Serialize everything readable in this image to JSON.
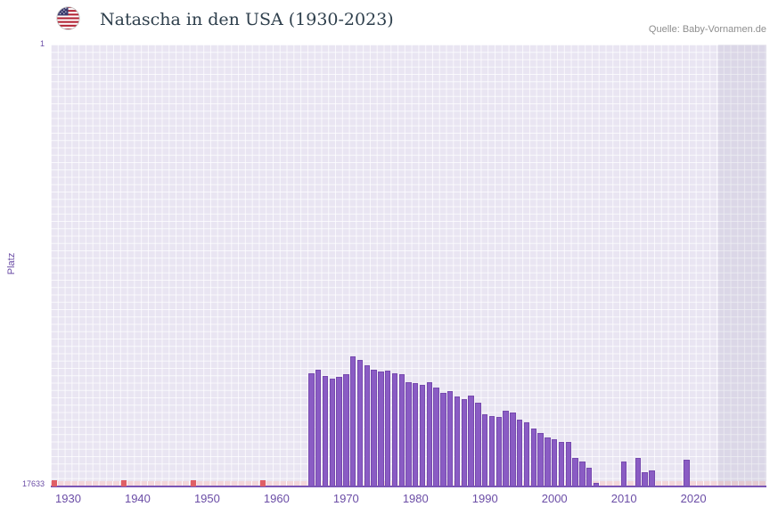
{
  "header": {
    "title": "Natascha in den USA (1930-2023)",
    "source": "Quelle: Baby-Vornamen.de",
    "flag": "us-flag"
  },
  "chart_data": {
    "type": "bar",
    "title": "Natascha in den USA (1930-2023)",
    "xlabel": "",
    "ylabel": "Platz",
    "y_axis": {
      "top_tick": "1",
      "bottom_tick": "17633",
      "min": 1,
      "max": 17633,
      "inverted": true
    },
    "x_axis": {
      "ticks": [
        "1930",
        "1940",
        "1950",
        "1960",
        "1970",
        "1980",
        "1990",
        "2000",
        "2010",
        "2020"
      ],
      "range": [
        1927.5,
        2030.5
      ]
    },
    "bars": [
      {
        "year": 1965,
        "rank": 13137
      },
      {
        "year": 1966,
        "rank": 13013
      },
      {
        "year": 1967,
        "rank": 13260
      },
      {
        "year": 1968,
        "rank": 13366
      },
      {
        "year": 1969,
        "rank": 13295
      },
      {
        "year": 1970,
        "rank": 13190
      },
      {
        "year": 1971,
        "rank": 12484
      },
      {
        "year": 1972,
        "rank": 12608
      },
      {
        "year": 1973,
        "rank": 12837
      },
      {
        "year": 1974,
        "rank": 13013
      },
      {
        "year": 1975,
        "rank": 13084
      },
      {
        "year": 1976,
        "rank": 13049
      },
      {
        "year": 1977,
        "rank": 13137
      },
      {
        "year": 1978,
        "rank": 13190
      },
      {
        "year": 1979,
        "rank": 13490
      },
      {
        "year": 1980,
        "rank": 13542
      },
      {
        "year": 1981,
        "rank": 13613
      },
      {
        "year": 1982,
        "rank": 13490
      },
      {
        "year": 1983,
        "rank": 13719
      },
      {
        "year": 1984,
        "rank": 13930
      },
      {
        "year": 1985,
        "rank": 13842
      },
      {
        "year": 1986,
        "rank": 14071
      },
      {
        "year": 1987,
        "rank": 14177
      },
      {
        "year": 1988,
        "rank": 14018
      },
      {
        "year": 1989,
        "rank": 14318
      },
      {
        "year": 1990,
        "rank": 14777
      },
      {
        "year": 1991,
        "rank": 14847
      },
      {
        "year": 1992,
        "rank": 14900
      },
      {
        "year": 1993,
        "rank": 14636
      },
      {
        "year": 1994,
        "rank": 14724
      },
      {
        "year": 1995,
        "rank": 14988
      },
      {
        "year": 1996,
        "rank": 15112
      },
      {
        "year": 1997,
        "rank": 15341
      },
      {
        "year": 1998,
        "rank": 15517
      },
      {
        "year": 1999,
        "rank": 15693
      },
      {
        "year": 2000,
        "rank": 15782
      },
      {
        "year": 2001,
        "rank": 15870
      },
      {
        "year": 2002,
        "rank": 15870
      },
      {
        "year": 2003,
        "rank": 16540
      },
      {
        "year": 2004,
        "rank": 16663
      },
      {
        "year": 2005,
        "rank": 16928
      },
      {
        "year": 2006,
        "rank": 17527
      },
      {
        "year": 2010,
        "rank": 16663
      },
      {
        "year": 2012,
        "rank": 16540
      },
      {
        "year": 2013,
        "rank": 17104
      },
      {
        "year": 2014,
        "rank": 17016
      },
      {
        "year": 2019,
        "rank": 16610
      }
    ],
    "no_data_mark_years": [
      1928,
      1938,
      1948,
      1958
    ],
    "future_band_start_year": 2023.6,
    "colors": {
      "bar": "#8a5cc4",
      "bar_border": "#7649ae",
      "axis_text": "#6b4da6",
      "plot_bg": "#e9e5f2",
      "title_text": "#2e3f4c",
      "source_text": "#8e8e8e",
      "no_data_mark": "#df5f66",
      "no_data_strip": "#f3d6da"
    }
  }
}
